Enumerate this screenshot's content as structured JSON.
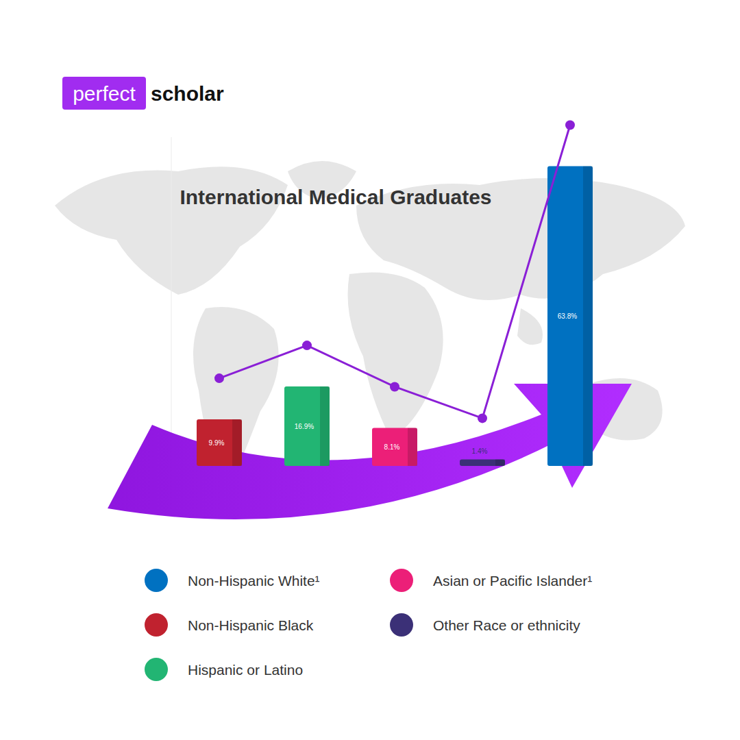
{
  "logo": {
    "highlight": "perfect",
    "text": "scholar"
  },
  "chart_data": {
    "type": "bar",
    "title": "International Medical Graduates",
    "categories": [
      "Non-Hispanic Black",
      "Hispanic or Latino",
      "Asian or Pacific Islander¹",
      "Other Race or ethnicity",
      "Non-Hispanic White¹"
    ],
    "values": [
      9.9,
      16.9,
      8.1,
      1.4,
      63.8
    ],
    "value_labels": [
      "9.9%",
      "16.9%",
      "8.1%",
      "1.4%",
      "63.8%"
    ],
    "colors": [
      "#c0222f",
      "#22b573",
      "#ec1f78",
      "#3b3077",
      "#0071c1"
    ],
    "ylim": [
      0,
      70
    ],
    "data_labels": true,
    "tick_labels": false,
    "legend": "bottom"
  }
}
